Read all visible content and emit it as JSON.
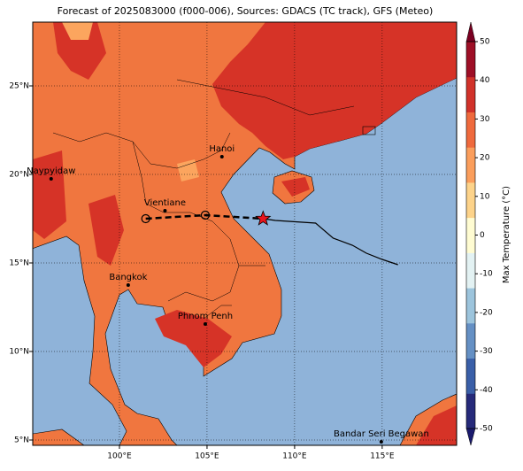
{
  "title": "Forecast of 2025083000 (f000-006), Sources: GDACS (TC track), GFS (Meteo)",
  "map": {
    "lon_range": [
      95.05,
      119.25
    ],
    "lat_range": [
      4.7,
      28.6
    ],
    "grid": true,
    "xticks": [
      {
        "value": 100,
        "label": "100°E"
      },
      {
        "value": 105,
        "label": "105°E"
      },
      {
        "value": 110,
        "label": "110°E"
      },
      {
        "value": 115,
        "label": "115°E"
      }
    ],
    "yticks": [
      {
        "value": 5,
        "label": "5°N"
      },
      {
        "value": 10,
        "label": "10°N"
      },
      {
        "value": 15,
        "label": "15°N"
      },
      {
        "value": 20,
        "label": "20°N"
      },
      {
        "value": 25,
        "label": "25°N"
      }
    ]
  },
  "cities": [
    {
      "name": "Naypyidaw",
      "lon": 96.1,
      "lat": 19.75
    },
    {
      "name": "Vientiane",
      "lon": 102.6,
      "lat": 17.95
    },
    {
      "name": "Hanoi",
      "lon": 105.85,
      "lat": 21.0
    },
    {
      "name": "Bangkok",
      "lon": 100.5,
      "lat": 13.75
    },
    {
      "name": "Phnom Penh",
      "lon": 104.9,
      "lat": 11.55
    },
    {
      "name": "Bandar Seri Begawan",
      "lon": 114.95,
      "lat": 4.9
    }
  ],
  "track": {
    "past": {
      "lon": [
        101.5,
        104.9
      ],
      "lat": [
        17.5,
        17.7
      ],
      "color": "#000000"
    },
    "current": {
      "lon": 108.2,
      "lat": 17.5,
      "color": "#e8141c"
    },
    "forecast": {
      "lon": [
        108.9,
        111.2,
        112.2,
        113.3,
        114.1,
        115.0,
        115.9
      ],
      "lat": [
        17.4,
        17.25,
        16.4,
        16.0,
        15.55,
        15.2,
        14.9
      ],
      "color": "#000000"
    }
  },
  "colorbar": {
    "label": "Max Temperature (°C)",
    "range": [
      -50,
      50
    ],
    "ticks": [
      50,
      40,
      30,
      20,
      10,
      0,
      -10,
      -20,
      -30,
      -40,
      -50
    ],
    "colors": [
      "#262a7a",
      "#3a5fa8",
      "#6590c4",
      "#9cc4dc",
      "#e3f2f3",
      "#fffcd2",
      "#fdd38a",
      "#fb9e5c",
      "#ef6a3d",
      "#d1322a",
      "#9e0f26"
    ],
    "under": "#1a1a6e",
    "over": "#7a0021"
  }
}
